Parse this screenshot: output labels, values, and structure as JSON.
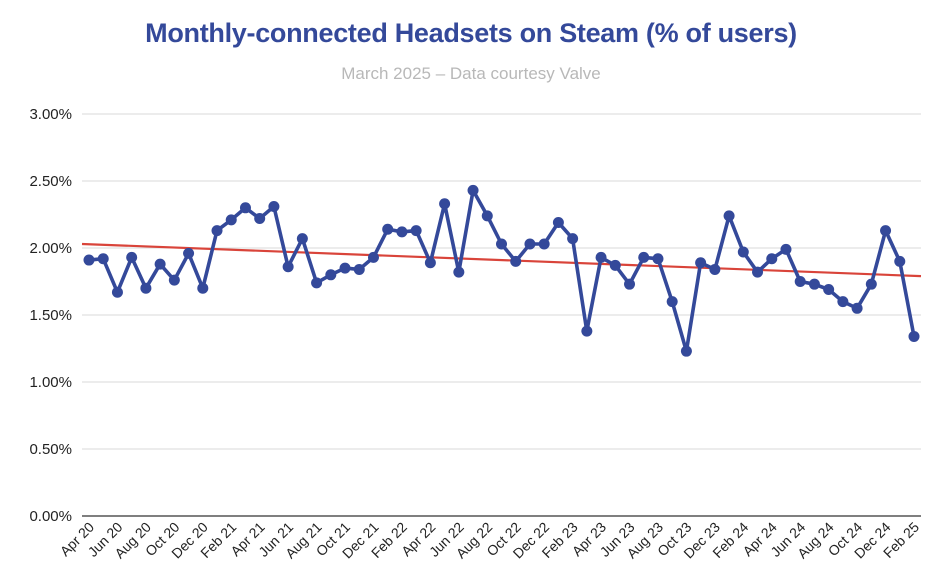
{
  "chart_data": {
    "type": "line",
    "title": "Monthly-connected Headsets on Steam (% of users)",
    "subtitle": "March 2025 – Data courtesy Valve",
    "xlabel": "",
    "ylabel": "",
    "ylim": [
      0,
      3
    ],
    "yticks": [
      "0.00%",
      "0.50%",
      "1.00%",
      "1.50%",
      "2.00%",
      "2.50%",
      "3.00%"
    ],
    "ytick_values": [
      0,
      0.5,
      1.0,
      1.5,
      2.0,
      2.5,
      3.0
    ],
    "grid": true,
    "legend": "none",
    "x": [
      "Apr 20",
      "May 20",
      "Jun 20",
      "Jul 20",
      "Aug 20",
      "Sep 20",
      "Oct 20",
      "Nov 20",
      "Dec 20",
      "Jan 21",
      "Feb 21",
      "Mar 21",
      "Apr 21",
      "May 21",
      "Jun 21",
      "Jul 21",
      "Aug 21",
      "Sep 21",
      "Oct 21",
      "Nov 21",
      "Dec 21",
      "Jan 22",
      "Feb 22",
      "Mar 22",
      "Apr 22",
      "May 22",
      "Jun 22",
      "Jul 22",
      "Aug 22",
      "Sep 22",
      "Oct 22",
      "Nov 22",
      "Dec 22",
      "Jan 23",
      "Feb 23",
      "Mar 23",
      "Apr 23",
      "May 23",
      "Jun 23",
      "Jul 23",
      "Aug 23",
      "Sep 23",
      "Oct 23",
      "Nov 23",
      "Dec 23",
      "Jan 24",
      "Feb 24",
      "Mar 24",
      "Apr 24",
      "May 24",
      "Jun 24",
      "Jul 24",
      "Aug 24",
      "Sep 24",
      "Oct 24",
      "Nov 24",
      "Dec 24",
      "Jan 25",
      "Feb 25"
    ],
    "xtick_labels": [
      "Apr 20",
      "Jun 20",
      "Aug 20",
      "Oct 20",
      "Dec 20",
      "Feb 21",
      "Apr 21",
      "Jun 21",
      "Aug 21",
      "Oct 21",
      "Dec 21",
      "Feb 22",
      "Apr 22",
      "Jun 22",
      "Aug 22",
      "Oct 22",
      "Dec 22",
      "Feb 23",
      "Apr 23",
      "Jun 23",
      "Aug 23",
      "Oct 23",
      "Dec 23",
      "Feb 24",
      "Apr 24",
      "Jun 24",
      "Aug 24",
      "Oct 24",
      "Dec 24",
      "Feb 25"
    ],
    "series": [
      {
        "values": [
          1.91,
          1.92,
          1.67,
          1.93,
          1.7,
          1.88,
          1.76,
          1.96,
          1.7,
          2.13,
          2.21,
          2.3,
          2.22,
          2.31,
          1.86,
          2.07,
          1.74,
          1.8,
          1.85,
          1.84,
          1.93,
          2.14,
          2.12,
          2.13,
          1.89,
          2.33,
          1.82,
          2.43,
          2.24,
          2.03,
          1.9,
          2.03,
          2.03,
          2.19,
          2.07,
          1.38,
          1.93,
          1.87,
          1.73,
          1.93,
          1.92,
          1.6,
          1.23,
          1.89,
          1.84,
          2.24,
          1.97,
          1.82,
          1.92,
          1.99,
          1.75,
          1.73,
          1.69,
          1.6,
          1.55,
          1.73,
          2.13,
          1.9,
          1.34
        ],
        "color": "#34499a"
      }
    ],
    "trendline": {
      "start": 2.03,
      "end": 1.79,
      "color": "#d9443a"
    }
  }
}
